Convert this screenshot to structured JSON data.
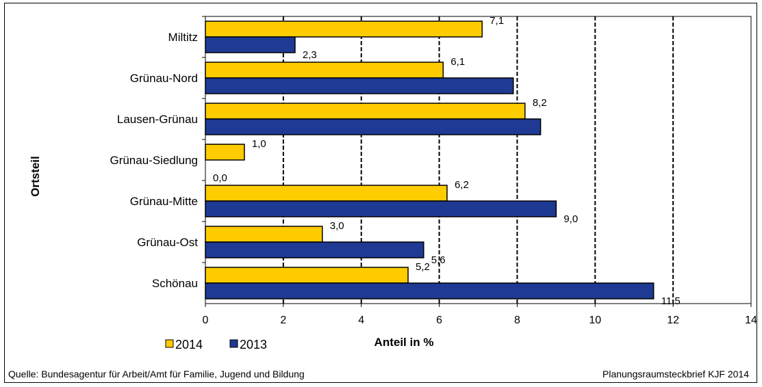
{
  "chart_data": {
    "type": "bar",
    "orientation": "horizontal",
    "categories": [
      "Miltitz",
      "Grünau-Nord",
      "Lausen-Grünau",
      "Grünau-Siedlung",
      "Grünau-Mitte",
      "Grünau-Ost",
      "Schönau"
    ],
    "series": [
      {
        "name": "2014",
        "color": "#ffcc00",
        "values": [
          7.1,
          6.1,
          8.2,
          1.0,
          6.2,
          3.0,
          5.2
        ],
        "labels": [
          "7,1",
          "6,1",
          "8,2",
          "1,0",
          "6,2",
          "3,0",
          "5,2"
        ]
      },
      {
        "name": "2013",
        "color": "#1f3a93",
        "values": [
          2.3,
          7.9,
          8.6,
          0.0,
          9.0,
          5.6,
          11.5
        ],
        "labels": [
          "2,3",
          "",
          "",
          "0,0",
          "9,0",
          "5,6",
          "11,5"
        ]
      }
    ],
    "xlabel": "Anteil in %",
    "ylabel": "Ortsteil",
    "xlim": [
      0,
      14
    ],
    "xticks": [
      0,
      2,
      4,
      6,
      8,
      10,
      12,
      14
    ],
    "grid": "vertical-dashed",
    "legend": "bottom-left"
  },
  "footer": {
    "source": "Quelle: Bundesagentur für Arbeit/Amt für Familie, Jugend und Bildung",
    "credit": "Planungsraumsteckbrief KJF 2014"
  }
}
